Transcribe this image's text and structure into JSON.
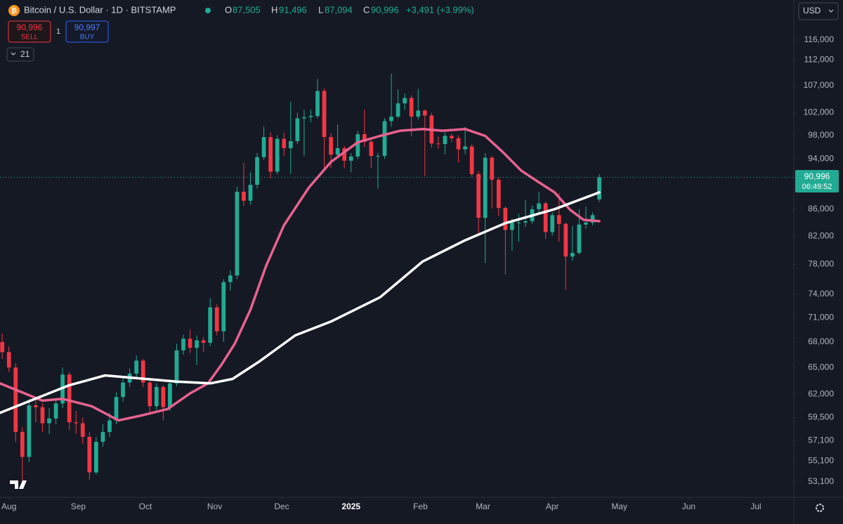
{
  "header": {
    "symbol": "Bitcoin / U.S. Dollar · 1D · BITSTAMP",
    "ohlc": [
      {
        "key": "O",
        "value": "87,505"
      },
      {
        "key": "H",
        "value": "91,496"
      },
      {
        "key": "L",
        "value": "87,094"
      },
      {
        "key": "C",
        "value": "90,996"
      }
    ],
    "change": "+3,491 (+3.99%)",
    "sell": {
      "price": "90,996",
      "label": "SELL"
    },
    "quantity": "1",
    "buy": {
      "price": "90,997",
      "label": "BUY"
    },
    "indicator_count": "21",
    "currency": "USD",
    "price_tag": "90,996",
    "countdown": "06:49:52"
  },
  "chart_data": {
    "type": "candlestick",
    "log_scale": true,
    "grid": false,
    "up_color": "#22ab94",
    "down_color": "#f23645",
    "xlim": [
      0,
      355
    ],
    "ylim": [
      51670,
      124500
    ],
    "xticks": [
      {
        "value": 4,
        "label": "Aug"
      },
      {
        "value": 35,
        "label": "Sep"
      },
      {
        "value": 65,
        "label": "Oct"
      },
      {
        "value": 96,
        "label": "Nov"
      },
      {
        "value": 126,
        "label": "Dec"
      },
      {
        "value": 157,
        "label": "2025"
      },
      {
        "value": 188,
        "label": "Feb"
      },
      {
        "value": 216,
        "label": "Mar"
      },
      {
        "value": 247,
        "label": "Apr"
      },
      {
        "value": 277,
        "label": "May"
      },
      {
        "value": 308,
        "label": "Jun"
      },
      {
        "value": 338,
        "label": "Jul"
      }
    ],
    "yticks": [
      {
        "value": 116000,
        "label": "116,000"
      },
      {
        "value": 112000,
        "label": "112,000"
      },
      {
        "value": 107000,
        "label": "107,000"
      },
      {
        "value": 102000,
        "label": "102,000"
      },
      {
        "value": 98000,
        "label": "98,000"
      },
      {
        "value": 94000,
        "label": "94,000"
      },
      {
        "value": 86000,
        "label": "86,000"
      },
      {
        "value": 82000,
        "label": "82,000"
      },
      {
        "value": 78000,
        "label": "78,000"
      },
      {
        "value": 74000,
        "label": "74,000"
      },
      {
        "value": 71000,
        "label": "71,000"
      },
      {
        "value": 68000,
        "label": "68,000"
      },
      {
        "value": 65000,
        "label": "65,000"
      },
      {
        "value": 62000,
        "label": "62,000"
      },
      {
        "value": 59500,
        "label": "59,500"
      },
      {
        "value": 57100,
        "label": "57,100"
      },
      {
        "value": 55100,
        "label": "55,100"
      },
      {
        "value": 53100,
        "label": "53,100"
      }
    ],
    "current_price": 90996,
    "x": [
      1,
      4,
      7,
      10,
      13,
      16,
      19,
      22,
      25,
      28,
      31,
      34,
      37,
      40,
      43,
      46,
      49,
      52,
      55,
      58,
      61,
      64,
      67,
      70,
      73,
      76,
      79,
      82,
      85,
      88,
      91,
      94,
      97,
      100,
      103,
      106,
      109,
      112,
      115,
      118,
      121,
      124,
      127,
      130,
      133,
      136,
      139,
      142,
      145,
      148,
      151,
      154,
      157,
      160,
      163,
      166,
      169,
      172,
      175,
      178,
      181,
      184,
      187,
      190,
      193,
      196,
      199,
      202,
      205,
      208,
      211,
      214,
      217,
      220,
      223,
      226,
      229,
      232,
      235,
      238,
      241,
      244,
      247,
      250,
      253,
      256,
      259,
      262,
      265,
      268
    ],
    "open": [
      68000,
      66800,
      65000,
      58000,
      55500,
      60800,
      60600,
      58900,
      59400,
      61000,
      64200,
      59000,
      58900,
      57500,
      54000,
      57000,
      58000,
      59200,
      61700,
      63300,
      64300,
      65800,
      63300,
      60700,
      62800,
      60600,
      63200,
      67000,
      68400,
      67300,
      68200,
      67900,
      72300,
      69300,
      75600,
      76500,
      88700,
      87300,
      89800,
      94300,
      97700,
      91900,
      97400,
      95800,
      97000,
      101000,
      101200,
      101400,
      106000,
      97700,
      94700,
      95800,
      93700,
      94400,
      98200,
      96900,
      94500,
      94500,
      100500,
      101300,
      103700,
      104700,
      101300,
      102400,
      101500,
      96600,
      96500,
      97900,
      97500,
      95600,
      96100,
      91500,
      84700,
      94200,
      90600,
      86200,
      82900,
      84000,
      84000,
      84200,
      86000,
      86900,
      82600,
      85100,
      83800,
      79100,
      79600,
      83700,
      84000,
      87505
    ],
    "high": [
      69000,
      67500,
      65500,
      58500,
      61500,
      61800,
      61000,
      60500,
      61500,
      65000,
      64500,
      60200,
      59500,
      58000,
      57500,
      58800,
      60000,
      62200,
      63800,
      64900,
      66400,
      66000,
      63800,
      63200,
      63000,
      63600,
      67800,
      68900,
      69500,
      68800,
      68600,
      73500,
      72700,
      76000,
      77200,
      89500,
      93400,
      91800,
      95000,
      99500,
      98500,
      98000,
      98500,
      104000,
      102000,
      102500,
      102600,
      108300,
      106500,
      98400,
      99900,
      96200,
      95000,
      98800,
      102500,
      97200,
      95000,
      101000,
      109300,
      106300,
      105500,
      105200,
      106400,
      102600,
      102000,
      97800,
      98500,
      98300,
      98000,
      99500,
      96500,
      92000,
      95000,
      94500,
      91000,
      86400,
      84600,
      85300,
      87400,
      86600,
      88700,
      87200,
      85500,
      88500,
      84000,
      83500,
      86000,
      86400,
      85500,
      91496
    ],
    "low": [
      66000,
      64500,
      57000,
      52500,
      55000,
      59000,
      58000,
      57800,
      58800,
      60500,
      58200,
      57800,
      56800,
      53300,
      53800,
      56500,
      57500,
      58800,
      61200,
      62800,
      63800,
      62800,
      60000,
      60300,
      59200,
      60200,
      62900,
      66500,
      66700,
      65300,
      66800,
      67500,
      68800,
      68000,
      74500,
      76000,
      86500,
      86700,
      89200,
      93800,
      90800,
      91500,
      94500,
      91500,
      96500,
      94500,
      100300,
      101000,
      92200,
      92500,
      94200,
      92500,
      91800,
      94000,
      96000,
      92500,
      89200,
      94000,
      99500,
      101000,
      102500,
      97800,
      100800,
      91200,
      95900,
      95700,
      94800,
      96800,
      93400,
      94800,
      91000,
      82200,
      78200,
      86100,
      85000,
      76600,
      79900,
      81200,
      83300,
      83800,
      85500,
      81600,
      82100,
      81200,
      74600,
      78500,
      79400,
      83100,
      83600,
      87094
    ],
    "close": [
      66800,
      65000,
      58000,
      55500,
      60800,
      60600,
      58900,
      59400,
      61000,
      64200,
      59000,
      58900,
      57500,
      54000,
      57000,
      58000,
      59200,
      61700,
      63300,
      64300,
      65800,
      63300,
      60700,
      62800,
      60600,
      63200,
      67000,
      68400,
      67300,
      68200,
      67900,
      72300,
      69300,
      75600,
      76500,
      88700,
      87300,
      89800,
      94300,
      97700,
      91900,
      97400,
      95800,
      97000,
      101000,
      101200,
      101400,
      106000,
      97700,
      94700,
      95800,
      93700,
      94400,
      98200,
      96900,
      94500,
      94500,
      100500,
      101300,
      103700,
      104700,
      101300,
      102400,
      101500,
      96600,
      96500,
      97900,
      97500,
      95600,
      96100,
      91500,
      84700,
      94200,
      90600,
      86200,
      82900,
      84000,
      84000,
      84200,
      86000,
      86900,
      82600,
      85100,
      83800,
      79100,
      79600,
      83700,
      84000,
      85100,
      90996
    ],
    "lines": [
      {
        "color": "#e8628f",
        "x": [
          0,
          19,
          28,
          41,
          53,
          63,
          75,
          85,
          93,
          99,
          105,
          112,
          119,
          127,
          138,
          148,
          160,
          170,
          179,
          189,
          198,
          208,
          217,
          225,
          233,
          241,
          248,
          255,
          261,
          268
        ],
        "values": [
          63200,
          61300,
          61500,
          60700,
          59200,
          59700,
          60400,
          62100,
          63200,
          65300,
          67800,
          72000,
          77800,
          83600,
          89300,
          93500,
          96800,
          97900,
          98800,
          99100,
          98800,
          99100,
          97900,
          95100,
          92100,
          90200,
          88600,
          85900,
          84400,
          84200
        ]
      },
      {
        "color": "#ffffff",
        "x": [
          0,
          31,
          47,
          79,
          94,
          104,
          116,
          132,
          148,
          170,
          189,
          208,
          226,
          248,
          268
        ],
        "values": [
          60000,
          63000,
          64100,
          63400,
          63200,
          63700,
          65700,
          68800,
          70500,
          73600,
          78400,
          81400,
          83900,
          86000,
          88600
        ]
      }
    ]
  }
}
